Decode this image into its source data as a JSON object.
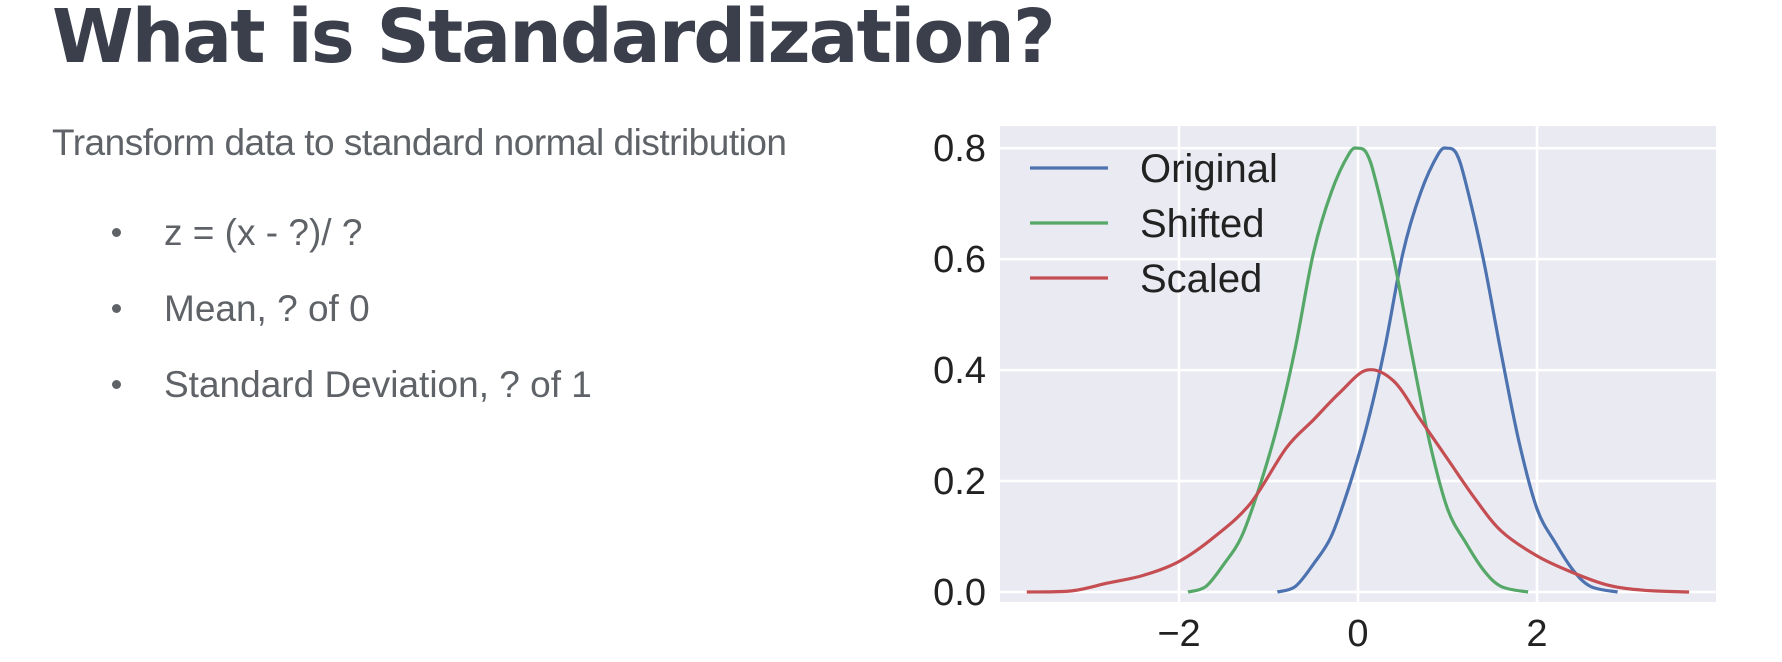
{
  "slide": {
    "title": "What is Standardization?",
    "subtitle": "Transform data to standard normal distribution",
    "bullets": [
      "z = (x - ?)/ ?",
      "Mean, ? of 0",
      "Standard Deviation, ? of 1"
    ]
  },
  "chart_data": {
    "type": "line",
    "title": "",
    "xlabel": "",
    "ylabel": "",
    "xlim": [
      -4,
      4
    ],
    "ylim": [
      0,
      0.8
    ],
    "x_ticks": [
      -2,
      0,
      2
    ],
    "x_tick_labels": [
      "−2",
      "0",
      "2"
    ],
    "y_ticks": [
      0.0,
      0.2,
      0.4,
      0.6,
      0.8
    ],
    "y_tick_labels": [
      "0.0",
      "0.2",
      "0.4",
      "0.6",
      "0.8"
    ],
    "grid": true,
    "background": "#eaeaf2",
    "legend_position": "top-left",
    "series": [
      {
        "name": "Original",
        "color": "#4c72b0",
        "x": [
          -0.9,
          -0.7,
          -0.5,
          -0.3,
          -0.1,
          0.1,
          0.3,
          0.5,
          0.7,
          0.9,
          1.0,
          1.1,
          1.2,
          1.4,
          1.6,
          1.8,
          2.0,
          2.2,
          2.4,
          2.6,
          2.9
        ],
        "y": [
          0.0,
          0.01,
          0.05,
          0.1,
          0.19,
          0.3,
          0.44,
          0.61,
          0.72,
          0.79,
          0.8,
          0.79,
          0.74,
          0.6,
          0.43,
          0.27,
          0.15,
          0.09,
          0.04,
          0.01,
          0.0
        ]
      },
      {
        "name": "Shifted",
        "color": "#55a868",
        "x": [
          -1.9,
          -1.7,
          -1.5,
          -1.3,
          -1.1,
          -0.9,
          -0.7,
          -0.5,
          -0.3,
          -0.1,
          0.0,
          0.1,
          0.2,
          0.4,
          0.6,
          0.8,
          1.0,
          1.2,
          1.4,
          1.6,
          1.9
        ],
        "y": [
          0.0,
          0.01,
          0.05,
          0.1,
          0.19,
          0.3,
          0.44,
          0.61,
          0.72,
          0.79,
          0.8,
          0.79,
          0.74,
          0.6,
          0.43,
          0.27,
          0.15,
          0.09,
          0.04,
          0.01,
          0.0
        ]
      },
      {
        "name": "Scaled",
        "color": "#c44e52",
        "x": [
          -3.7,
          -3.2,
          -2.8,
          -2.4,
          -2.0,
          -1.6,
          -1.2,
          -0.8,
          -0.5,
          -0.2,
          0.1,
          0.4,
          0.7,
          1.0,
          1.3,
          1.6,
          2.0,
          2.4,
          2.8,
          3.2,
          3.7
        ],
        "y": [
          0.0,
          0.002,
          0.016,
          0.03,
          0.055,
          0.1,
          0.16,
          0.26,
          0.31,
          0.36,
          0.4,
          0.38,
          0.31,
          0.24,
          0.17,
          0.11,
          0.065,
          0.035,
          0.012,
          0.003,
          0.0
        ]
      }
    ]
  }
}
